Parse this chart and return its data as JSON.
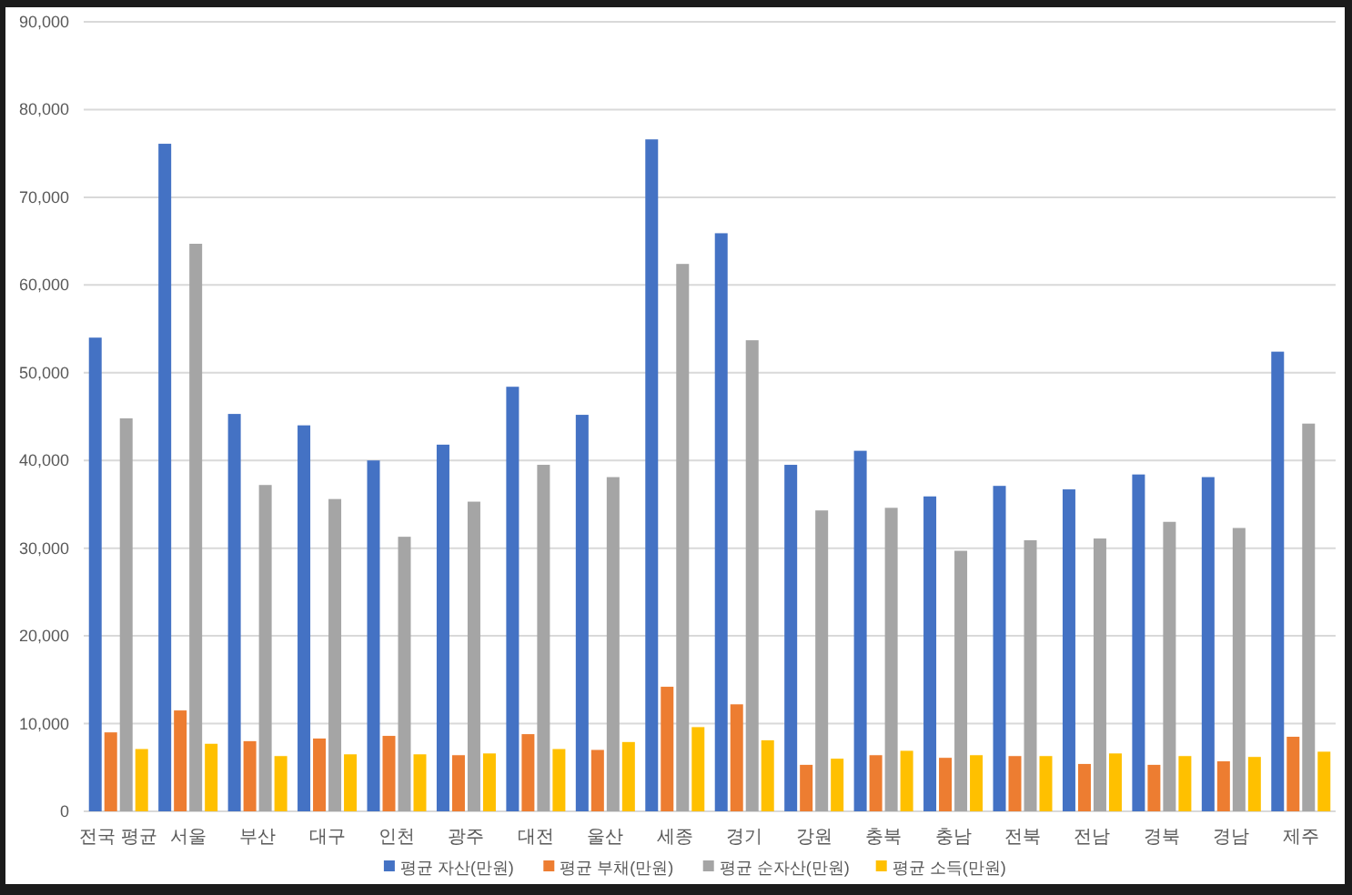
{
  "chart_data": {
    "type": "bar",
    "categories": [
      "전국 평균",
      "서울",
      "부산",
      "대구",
      "인천",
      "광주",
      "대전",
      "울산",
      "세종",
      "경기",
      "강원",
      "충북",
      "충남",
      "전북",
      "전남",
      "경북",
      "경남",
      "제주"
    ],
    "series": [
      {
        "name": "평균 자산(만원)",
        "color": "#4472c4",
        "values": [
          54000,
          76100,
          45300,
          44000,
          40000,
          41800,
          48400,
          45200,
          76600,
          65900,
          39500,
          41100,
          35900,
          37100,
          36700,
          38400,
          38100,
          52400
        ]
      },
      {
        "name": "평균 부채(만원)",
        "color": "#ed7d31",
        "values": [
          9000,
          11500,
          8000,
          8300,
          8600,
          6400,
          8800,
          7000,
          14200,
          12200,
          5300,
          6400,
          6100,
          6300,
          5400,
          5300,
          5700,
          8500
        ]
      },
      {
        "name": "평균 순자산(만원)",
        "color": "#a5a5a5",
        "values": [
          44800,
          64700,
          37200,
          35600,
          31300,
          35300,
          39500,
          38100,
          62400,
          53700,
          34300,
          34600,
          29700,
          30900,
          31100,
          33000,
          32300,
          44200
        ]
      },
      {
        "name": "평균 소득(만원)",
        "color": "#ffc000",
        "values": [
          7100,
          7700,
          6300,
          6500,
          6500,
          6600,
          7100,
          7900,
          9600,
          8100,
          6000,
          6900,
          6400,
          6300,
          6600,
          6300,
          6200,
          6800
        ]
      }
    ],
    "ylim": [
      0,
      90000
    ],
    "yticks": [
      {
        "value": 0,
        "label": "0"
      },
      {
        "value": 10000,
        "label": "10,000"
      },
      {
        "value": 20000,
        "label": "20,000"
      },
      {
        "value": 30000,
        "label": "30,000"
      },
      {
        "value": 40000,
        "label": "40,000"
      },
      {
        "value": 50000,
        "label": "50,000"
      },
      {
        "value": 60000,
        "label": "60,000"
      },
      {
        "value": 70000,
        "label": "70,000"
      },
      {
        "value": 80000,
        "label": "80,000"
      },
      {
        "value": 90000,
        "label": "90,000"
      }
    ],
    "grid": "y",
    "legend": "bottom"
  }
}
